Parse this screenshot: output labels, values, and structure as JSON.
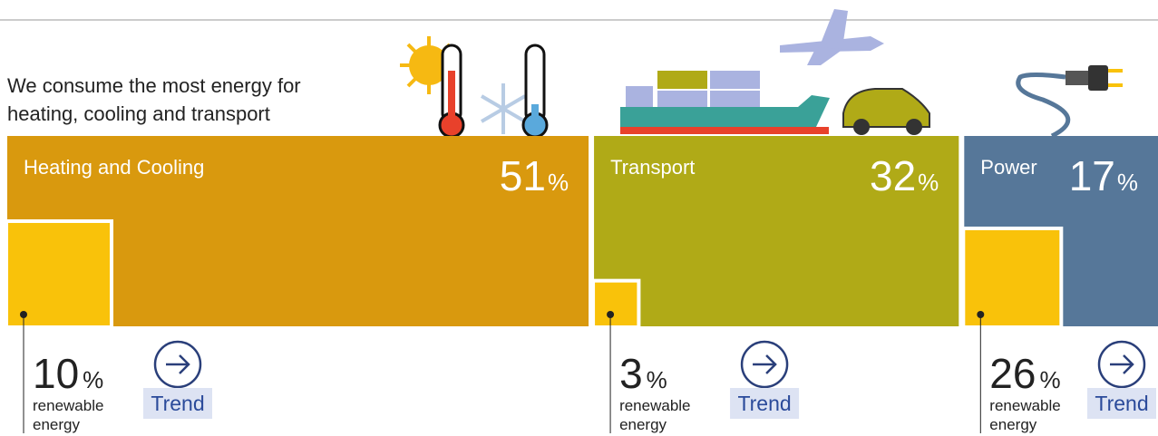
{
  "chart_data": {
    "type": "share-blocks",
    "title_lines": [
      "We consume the most energy for",
      "heating, cooling and transport"
    ],
    "renewable_label_lines": [
      "renewable",
      "energy"
    ],
    "button_label": "Trend",
    "unit": "%",
    "categories": [
      "Heating and Cooling",
      "Transport",
      "Power"
    ],
    "series": [
      {
        "name": "share",
        "colors": [
          "#d9990e",
          "#b0aa17",
          "#567799"
        ],
        "values": [
          51,
          32,
          17
        ]
      },
      {
        "name": "renewable",
        "color": "#f9c20a",
        "values": [
          10,
          3,
          26
        ]
      }
    ]
  }
}
